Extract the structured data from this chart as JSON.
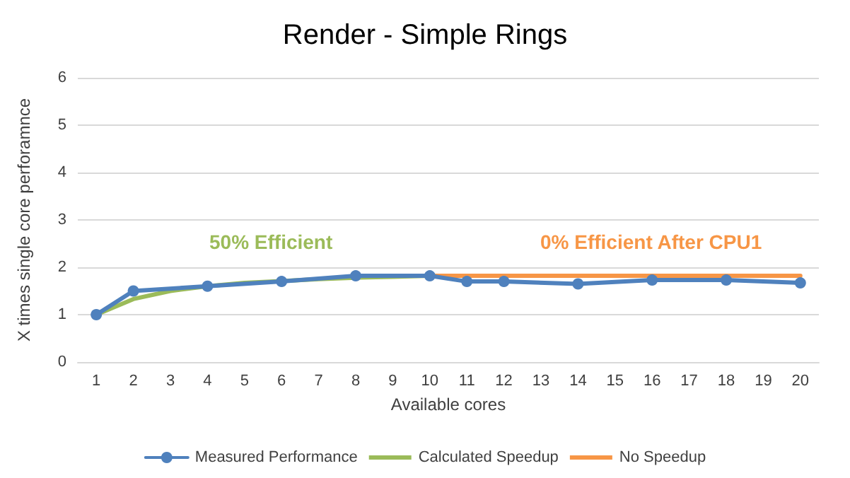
{
  "chart_data": {
    "type": "line",
    "title": "Render - Simple Rings",
    "xlabel": "Available cores",
    "ylabel": "X times single core perforamnce",
    "categories": [
      "1",
      "2",
      "3",
      "4",
      "5",
      "6",
      "7",
      "8",
      "9",
      "10",
      "11",
      "12",
      "13",
      "14",
      "15",
      "16",
      "17",
      "18",
      "19",
      "20"
    ],
    "series": [
      {
        "name": "Measured Performance",
        "color": "#4f81bd",
        "marker": "circle",
        "values": [
          1.0,
          1.5,
          null,
          1.6,
          null,
          1.7,
          null,
          1.82,
          null,
          1.82,
          1.7,
          1.7,
          null,
          1.65,
          null,
          1.73,
          null,
          1.73,
          null,
          1.67
        ]
      },
      {
        "name": "Calculated Speedup",
        "color": "#9bbb59",
        "marker": "none",
        "values": [
          1.0,
          1.33,
          1.5,
          1.6,
          1.67,
          1.71,
          1.75,
          1.78,
          1.8,
          1.82,
          null,
          null,
          null,
          null,
          null,
          null,
          null,
          null,
          null,
          null
        ]
      },
      {
        "name": "No Speedup",
        "color": "#f79646",
        "marker": "none",
        "values": [
          null,
          null,
          null,
          null,
          null,
          null,
          null,
          null,
          null,
          1.82,
          1.82,
          1.82,
          1.82,
          1.82,
          1.82,
          1.82,
          1.82,
          1.82,
          1.82,
          1.82
        ]
      }
    ],
    "annotations": [
      "50% Efficient",
      "0% Efficient After CPU1"
    ],
    "ylim": [
      0,
      6
    ],
    "yticks": [
      0,
      1,
      2,
      3,
      4,
      5,
      6
    ],
    "grid": "y",
    "legend": "bottom"
  }
}
